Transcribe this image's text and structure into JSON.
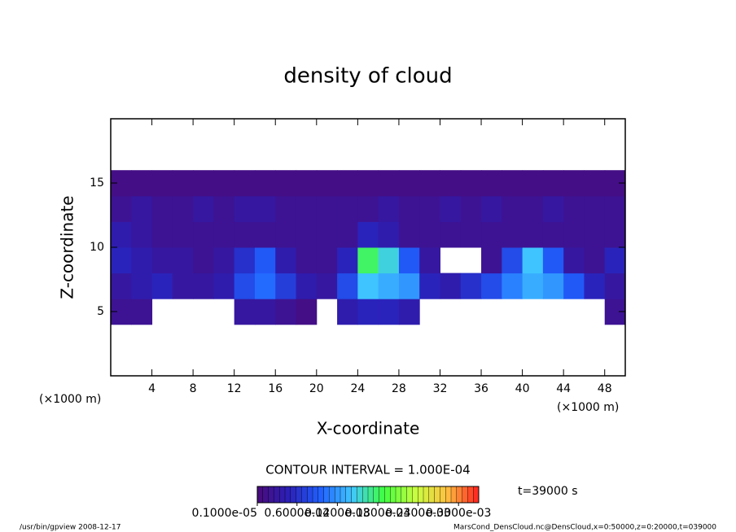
{
  "chart_data": {
    "type": "heatmap",
    "title": "density of cloud",
    "x_label": "X-coordinate",
    "y_label": "Z-coordinate",
    "x_unit": "(×1000 m)",
    "y_unit": "(×1000 m)",
    "xlim": [
      0,
      50
    ],
    "xticks": [
      4,
      8,
      12,
      16,
      20,
      24,
      28,
      32,
      36,
      40,
      44,
      48
    ],
    "ylim": [
      0,
      20
    ],
    "yticks": [
      5,
      10,
      15
    ],
    "xbins": [
      0,
      2,
      4,
      6,
      8,
      10,
      12,
      14,
      16,
      18,
      20,
      22,
      24,
      26,
      28,
      30,
      32,
      34,
      36,
      38,
      40,
      42,
      44,
      46,
      48,
      50
    ],
    "zbins": [
      4,
      6,
      8,
      10,
      12,
      14,
      16
    ],
    "values": [
      [
        2e-05,
        2e-05,
        null,
        null,
        null,
        null,
        3e-05,
        3e-05,
        2e-05,
        1e-05,
        null,
        4e-05,
        5e-05,
        5e-05,
        4e-05,
        null,
        null,
        null,
        null,
        null,
        null,
        null,
        null,
        null,
        2e-05
      ],
      [
        3e-05,
        4e-05,
        5e-05,
        3e-05,
        3e-05,
        4e-05,
        8e-05,
        0.0001,
        7e-05,
        4e-05,
        3e-05,
        8e-05,
        0.00014,
        0.00013,
        0.00012,
        5e-05,
        4e-05,
        6e-05,
        8e-05,
        0.00011,
        0.00013,
        0.00012,
        9e-05,
        5e-05,
        3e-05
      ],
      [
        5e-05,
        4e-05,
        3e-05,
        3e-05,
        2e-05,
        3e-05,
        6e-05,
        9e-05,
        4e-05,
        2e-05,
        2e-05,
        5e-05,
        0.00018,
        0.00015,
        9e-05,
        3e-05,
        null,
        null,
        2e-05,
        8e-05,
        0.00014,
        9e-05,
        3e-05,
        2e-05,
        5e-05
      ],
      [
        4e-05,
        3e-05,
        2e-05,
        2e-05,
        2e-05,
        2e-05,
        2e-05,
        2e-05,
        2e-05,
        2e-05,
        2e-05,
        2e-05,
        5e-05,
        4e-05,
        2e-05,
        2e-05,
        2e-05,
        2e-05,
        2e-05,
        2e-05,
        2e-05,
        2e-05,
        2e-05,
        2e-05,
        2e-05
      ],
      [
        2e-05,
        3e-05,
        2e-05,
        2e-05,
        3e-05,
        2e-05,
        3e-05,
        3e-05,
        2e-05,
        2e-05,
        2e-05,
        2e-05,
        2e-05,
        3e-05,
        2e-05,
        2e-05,
        3e-05,
        2e-05,
        3e-05,
        2e-05,
        2e-05,
        3e-05,
        2e-05,
        2e-05,
        2e-05
      ],
      [
        1e-05,
        1e-05,
        1e-05,
        1e-05,
        1e-05,
        1e-05,
        1e-05,
        1e-05,
        1e-05,
        1e-05,
        1e-05,
        1e-05,
        1e-05,
        1e-05,
        1e-05,
        1e-05,
        1e-05,
        1e-05,
        1e-05,
        1e-05,
        1e-05,
        1e-05,
        1e-05,
        1e-05,
        1e-05
      ]
    ],
    "zlim": [
      1e-06,
      0.00033
    ],
    "colors": [
      "#4a0a7a",
      "#2a20b8",
      "#2060ff",
      "#40c8ff",
      "#40ff40",
      "#c8ff40",
      "#ffc040",
      "#ff2020"
    ],
    "colorbar_ticks": [
      {
        "value": 1e-06,
        "label": "0.1000e-05"
      },
      {
        "value": 6e-05,
        "label": "0.6000e-04"
      },
      {
        "value": 0.00012,
        "label": "0.1200e-03"
      },
      {
        "value": 0.00018,
        "label": "0.1800e-03"
      },
      {
        "value": 0.00024,
        "label": "0.2400e-03"
      },
      {
        "value": 0.0003,
        "label": "0.3000e-03"
      }
    ],
    "contour_interval": "CONTOUR INTERVAL = 1.000E-04",
    "time_label": "t=39000 s",
    "footer_left": "/usr/bin/gpview  2008-12-17",
    "footer_right": "MarsCond_DensCloud.nc@DensCloud,x=0:50000,z=0:20000,t=039000"
  }
}
